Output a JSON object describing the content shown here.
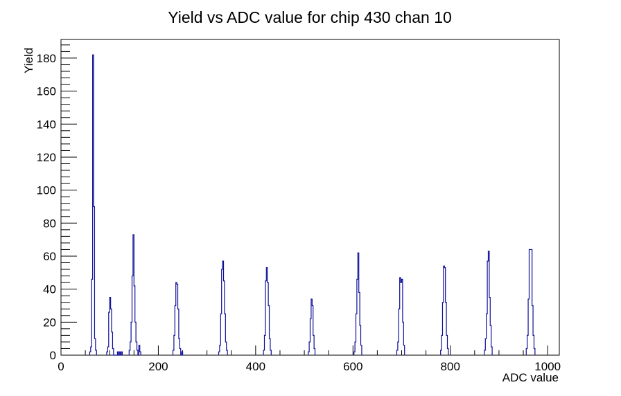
{
  "chart_data": {
    "type": "bar",
    "style": "root-histogram-step-outline",
    "title": "Yield vs ADC value for chip 430 chan 10",
    "xlabel": "ADC value",
    "ylabel": "Yield",
    "xlim": [
      0,
      1024
    ],
    "ylim": [
      0,
      191.3
    ],
    "grid": false,
    "legend": "none",
    "x_major_tick_step": 200,
    "x_minor_tick_step": 50,
    "y_major_tick_step": 20,
    "y_minor_tick_step": 4,
    "x_tick_labels": [
      "0",
      "200",
      "400",
      "600",
      "800",
      "1000"
    ],
    "y_tick_labels": [
      "0",
      "20",
      "40",
      "60",
      "80",
      "100",
      "120",
      "140",
      "160",
      "180"
    ],
    "line_color": "#0d0d96",
    "frame_color": "#000000",
    "bin_width": 2,
    "bins": [
      [
        60,
        2
      ],
      [
        62,
        5
      ],
      [
        64,
        46
      ],
      [
        66,
        182
      ],
      [
        68,
        90
      ],
      [
        70,
        10
      ],
      [
        72,
        3
      ],
      [
        95,
        2
      ],
      [
        97,
        5
      ],
      [
        99,
        26
      ],
      [
        101,
        35
      ],
      [
        103,
        28
      ],
      [
        105,
        14
      ],
      [
        107,
        4
      ],
      [
        117,
        2
      ],
      [
        121,
        2
      ],
      [
        125,
        2
      ],
      [
        141,
        3
      ],
      [
        143,
        8
      ],
      [
        145,
        20
      ],
      [
        147,
        48
      ],
      [
        149,
        73
      ],
      [
        151,
        42
      ],
      [
        153,
        20
      ],
      [
        155,
        8
      ],
      [
        157,
        3
      ],
      [
        161,
        6
      ],
      [
        163,
        2
      ],
      [
        231,
        3
      ],
      [
        233,
        12
      ],
      [
        235,
        30
      ],
      [
        237,
        44
      ],
      [
        239,
        43
      ],
      [
        241,
        28
      ],
      [
        243,
        10
      ],
      [
        245,
        4
      ],
      [
        249,
        2
      ],
      [
        325,
        2
      ],
      [
        327,
        6
      ],
      [
        329,
        25
      ],
      [
        331,
        52
      ],
      [
        333,
        57
      ],
      [
        335,
        45
      ],
      [
        337,
        25
      ],
      [
        339,
        8
      ],
      [
        341,
        3
      ],
      [
        417,
        3
      ],
      [
        419,
        12
      ],
      [
        421,
        45
      ],
      [
        423,
        53
      ],
      [
        425,
        44
      ],
      [
        427,
        30
      ],
      [
        429,
        10
      ],
      [
        431,
        3
      ],
      [
        509,
        2
      ],
      [
        511,
        8
      ],
      [
        513,
        22
      ],
      [
        515,
        34
      ],
      [
        517,
        30
      ],
      [
        519,
        12
      ],
      [
        521,
        4
      ],
      [
        603,
        2
      ],
      [
        605,
        8
      ],
      [
        607,
        25
      ],
      [
        609,
        46
      ],
      [
        611,
        62
      ],
      [
        613,
        38
      ],
      [
        615,
        18
      ],
      [
        617,
        6
      ],
      [
        691,
        3
      ],
      [
        693,
        8
      ],
      [
        695,
        28
      ],
      [
        697,
        47
      ],
      [
        699,
        44
      ],
      [
        701,
        46
      ],
      [
        703,
        20
      ],
      [
        705,
        6
      ],
      [
        781,
        3
      ],
      [
        783,
        12
      ],
      [
        785,
        32
      ],
      [
        787,
        54
      ],
      [
        789,
        53
      ],
      [
        791,
        32
      ],
      [
        793,
        12
      ],
      [
        795,
        4
      ],
      [
        871,
        3
      ],
      [
        873,
        10
      ],
      [
        875,
        25
      ],
      [
        877,
        57
      ],
      [
        879,
        63
      ],
      [
        881,
        35
      ],
      [
        883,
        18
      ],
      [
        885,
        5
      ],
      [
        957,
        4
      ],
      [
        959,
        12
      ],
      [
        961,
        34
      ],
      [
        963,
        64
      ],
      [
        965,
        64
      ],
      [
        967,
        64
      ],
      [
        969,
        30
      ],
      [
        971,
        12
      ],
      [
        973,
        4
      ]
    ]
  }
}
